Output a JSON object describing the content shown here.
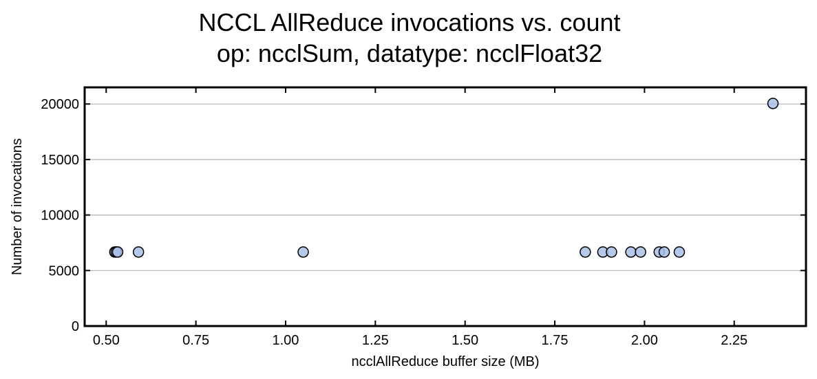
{
  "chart_data": {
    "type": "scatter",
    "title_lines": [
      "NCCL AllReduce invocations vs. count",
      "op: ncclSum, datatype: ncclFloat32"
    ],
    "xlabel": "ncclAllReduce buffer size (MB)",
    "ylabel": "Number of invocations",
    "xlim": [
      0.44,
      2.45
    ],
    "ylim": [
      0,
      21500
    ],
    "xticks": [
      0.5,
      0.75,
      1.0,
      1.25,
      1.5,
      1.75,
      2.0,
      2.25
    ],
    "xtick_labels": [
      "0.50",
      "0.75",
      "1.00",
      "1.25",
      "1.50",
      "1.75",
      "2.00",
      "2.25"
    ],
    "yticks": [
      0,
      5000,
      10000,
      15000,
      20000
    ],
    "ytick_labels": [
      "0",
      "5000",
      "10000",
      "15000",
      "20000"
    ],
    "grid": "horizontal",
    "marker_color": "#a8bfe8",
    "marker_edge": "#000000",
    "points": [
      {
        "x": 0.524,
        "y": 6667
      },
      {
        "x": 0.528,
        "y": 6667
      },
      {
        "x": 0.532,
        "y": 6667
      },
      {
        "x": 0.59,
        "y": 6667
      },
      {
        "x": 1.049,
        "y": 6667
      },
      {
        "x": 1.835,
        "y": 6667
      },
      {
        "x": 1.884,
        "y": 6667
      },
      {
        "x": 1.908,
        "y": 6667
      },
      {
        "x": 1.962,
        "y": 6667
      },
      {
        "x": 1.989,
        "y": 6667
      },
      {
        "x": 2.041,
        "y": 6667
      },
      {
        "x": 2.055,
        "y": 6667
      },
      {
        "x": 2.097,
        "y": 6667
      },
      {
        "x": 2.358,
        "y": 20050
      }
    ]
  }
}
